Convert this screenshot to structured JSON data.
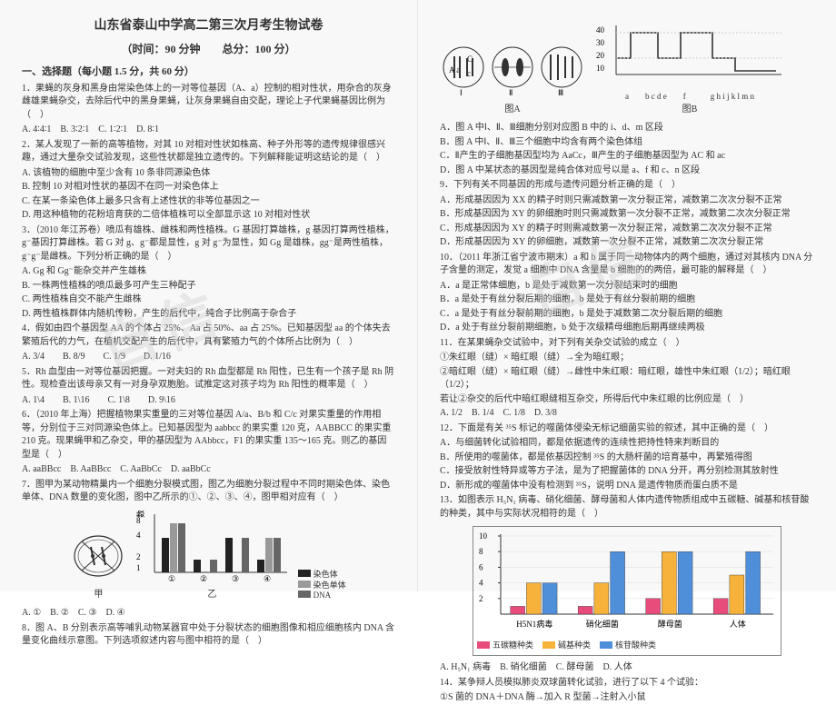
{
  "header": {
    "title": "山东省泰山中学高二第三次月考生物试卷",
    "subtitle": "（时间：90 分钟　　总分：100 分）"
  },
  "section1": {
    "heading": "一、选择题（每小题 1.5 分，共 60 分）",
    "q1": "1．果蝇的灰身和黑身由常染色体上的一对等位基因（A、a）控制的相对性状，用杂合的灰身雌雄果蝇杂交，去除后代中的黑身果蝇，让灰身果蝇自由交配，理论上子代果蝇基因比例为（　）",
    "q1_opts": "A. 4∶4∶1　B. 3∶2∶1　C. 1∶2∶1　D. 8∶1",
    "q2": "2．某人发现了一新的高等植物，对其 10 对相对性状如株高、种子外形等的遗传规律很感兴趣，通过大量杂交试验发现，这些性状都是独立遗传的。下列解释能证明这结论的是（　）",
    "q2_a": "A. 该植物的细胞中至少含有 10 条非同源染色体",
    "q2_b": "B. 控制 10 对相对性状的基因不在同一对染色体上",
    "q2_c": "C. 在某一条染色体上最多只含有上述性状的非等位基因之一",
    "q2_d": "D. 用这种植物的花粉培育获的二倍体植株可以全部显示这 10 对相对性状",
    "q3": "3．（2010 年江苏卷）喷瓜有雄株、雌株和两性植株。G 基因打算雄株，g 基因打算两性植株，g⁻基因打算雌株。若 G 对 g、g⁻都是显性，g 对 g⁻为显性，如 Gg 是雄株，gg⁻是两性植株，g⁻g⁻是雌株。下列分析正确的是（　）",
    "q3_a": "A. Gg 和 Gg⁻能杂交并产生雄株",
    "q3_b": "B. 一株两性植株的喷瓜最多可产生三种配子",
    "q3_c": "C. 两性植株自交不能产生雌株",
    "q3_d": "D. 两性植株群体内随机传粉，产生的后代中，纯合子比例高于杂合子",
    "q4": "4．假如由四个基因型 AA 的个体占 25%、Aa 占 50%、aa 占 25%。已知基因型 aa 的个体失去繁殖后代的力气，在植机交配产生的后代中，具有繁殖力气的个体所占比例为（　）",
    "q4_opts": "A. 3/4　　B. 8/9　　C. 1/9　　D. 1/16",
    "q5": "5．Rh 血型由一对等位基因把握。一对夫妇的 Rh 血型都是 Rh 阳性，已生有一个孩子是 Rh 阴性。现检查出该母亲又有一对身孕双胞胎。试推定这对孩子均为 Rh 阳性的概率是（　）",
    "q5_opts": "A. 1\\4　　B. 1\\16　　C. 1\\8　　D. 9\\16",
    "q6": "6．（2010 年上海）把握植物果实重量的三对等位基因 A/a、B/b 和 C/c 对果实重量的作用相等，分别位于三对同源染色体上。已知基因型为 aabbcc 的果实重 120 克，AABBCC 的果实重 210 克。现果蝇甲和乙杂交，甲的基因型为 AAbbcc，F1 的果实重 135～165 克。则乙的基因型是（　）",
    "q6_opts": "A. aaBBcc　B. AaBBcc　C. AaBbCc　D. aaBbCc",
    "q7": "7．图甲为某动物精巢内一个细胞分裂模式图，图乙为细胞分裂过程中不同时期染色体、染色单体、DNA 数量的变化图，图中乙所示的①、②、③、④，图甲相对应有（　）",
    "q7_opts": "A. ①　B. ②　C. ③　D. ④",
    "q8": "8．图 A、B 分别表示高等哺乳动物某器官中处于分裂状态的细胞图像和相应细胞核内 DNA 含量变化曲线示意图。下列选项叙述内容与图中相符的是（　）",
    "fig_jia": "甲",
    "fig_yi": "乙",
    "fig_yi_legend": [
      "染色体",
      "染色单体",
      "DNA"
    ]
  },
  "right": {
    "q8_opts": [
      "A．图 A 中Ⅰ、Ⅱ、Ⅲ细胞分别对应图 B 中的 i、d、m 区段",
      "B．图 A 中Ⅰ、Ⅱ、Ⅲ三个细胞中均含有两个染色体组",
      "C．Ⅱ产生的子细胞基因型均为 AaCc，Ⅲ产生的子细胞基因型为 AC 和 ac",
      "D．图 A 中某状态的基因型是纯合体对应号以是 a、f 和 c、n 区段"
    ],
    "q9": "9．下列有关不同基因的形成与遗传问题分析正确的是（　）",
    "q9_opts": [
      "A．形成基因因为 XX 的精子时则只需减数第一次分裂正常，减数第二次次分裂不正常",
      "B．形成基因因为 XY 的卵细胞时则只需减数第一次分裂不正常，减数第二次次分裂正常",
      "C．形成基因因为 XY 的精子时则需减数第一次分裂正常，减数第二次次分裂不正常",
      "D．形成基因因为 XY 的卵细胞，减数第一次分裂不正常，减数第二次次分裂正常"
    ],
    "q10": "10．（2011 年浙江省宁波市期末）a 和 b 属于同一动物体内的两个细胞，通过对其核内 DNA 分子含量的测定，发觉 a 细胞中 DNA 含量是 b 细胞的的两倍，最可能的解释是（　）",
    "q10_opts": [
      "A．a 是正常体细胞，b 是处于减数第一次分裂结束时的细胞",
      "B．a 是处于有丝分裂后期的细胞，b 是处于有丝分裂前期的细胞",
      "C．a 是处于有丝分裂前期的细胞，b 是处于减数第二次分裂后期的细胞",
      "D．a 处于有丝分裂前期细胞，b 处于次级精母细胞后期再继续两极"
    ],
    "q11": "11．在某果蝇杂交试验中，对下列有关杂交试验的成立（　）",
    "q11_items": [
      "①朱红眼（缝）× 暗红眼（缝）→全为暗红眼；",
      "②暗红眼（缝）× 暗红眼（缝）→雌性中朱红眼：暗红眼，雄性中朱红眼（1/2）；暗红眼（1/2）；",
      "若让②杂交的后代中暗红眼缝相互杂交，所得后代中朱红眼的比例应是（　）"
    ],
    "q11_opts": "A. 1/2　B. 1/4　C. 1/8　D. 3/8",
    "q12": "12．下面是有关 ³⁵S 标记的噬菌体侵染无标记细菌实验的叙述，其中正确的是（　）",
    "q12_opts": [
      "A．与细菌转化试验相同，都是依据遗传的连续性把持性特来判断目的",
      "B．所使用的噬菌体，都是依基因控制 ³⁵S 的大肠杆菌的培育基中，再繁殖得图",
      "C．接受放射性特异或等方子法，是为了把握菌体的 DNA 分开，再分别检测其放射性",
      "D．新形成的噬菌体中没有检测到 ³⁵S，说明 DNA 是遗传物质而蛋白质不是"
    ],
    "q13": "13．如图表示 H₅N₁ 病毒、硝化细菌、酵母菌和人体内遗传物质组成中五碳糖、碱基和核苷酸的种类，其中与实际状况相符的是（　）",
    "q13_opts": "A. H₅N₁ 病毒　B. 硝化细菌　C. 酵母菌　D. 人体",
    "q14": "14．某争辩人员模拟肺炎双球菌转化试验，进行了以下 4 个试验：",
    "q14_item": "①S 菌的 DNA＋DNA 酶→加入 R 型菌→注射入小鼠",
    "figA_label": "图A",
    "figB_label": "图B",
    "figA_rom": [
      "Ⅰ",
      "Ⅱ",
      "Ⅲ"
    ],
    "figB_xlabels": "a　　b c d e　　f　　　g h i j k l m n",
    "figB_ylabels": [
      "40",
      "30",
      "20",
      "10"
    ],
    "chart13": {
      "categories": [
        "H5N1病毒",
        "硝化细菌",
        "酵母菌",
        "人体"
      ],
      "series": [
        {
          "name": "五碳糖种类",
          "color": "#e84c7a",
          "values": [
            1,
            1,
            2,
            2
          ]
        },
        {
          "name": "碱基种类",
          "color": "#f6b23b",
          "values": [
            4,
            4,
            8,
            5
          ]
        },
        {
          "name": "核苷酸种类",
          "color": "#4f8fd9",
          "values": [
            4,
            8,
            8,
            8
          ]
        }
      ],
      "ymax": 10,
      "yticks": [
        2,
        4,
        6,
        8,
        10
      ]
    }
  }
}
